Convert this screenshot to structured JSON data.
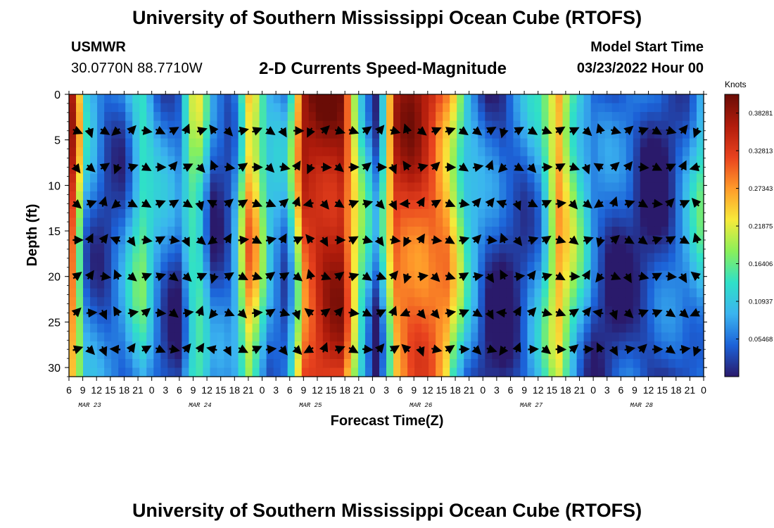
{
  "header": {
    "title": "University of Southern Mississippi Ocean Cube (RTOFS)",
    "station": "USMWR",
    "coordinates": "30.0770N  88.7710W",
    "subtitle": "2-D Currents Speed-Magnitude",
    "start_label": "Model Start Time",
    "start_value": "03/23/2022 Hour 00"
  },
  "footer": {
    "title": "University of Southern Mississippi Ocean Cube (RTOFS)"
  },
  "chart_data": {
    "type": "heatmap",
    "title": "2-D Currents Speed-Magnitude",
    "xlabel": "Forecast Time(Z)",
    "ylabel": "Depth (ft)",
    "x_ticks": [
      "6",
      "9",
      "12",
      "15",
      "18",
      "21",
      "0",
      "3",
      "6",
      "9",
      "12",
      "15",
      "18",
      "21",
      "0",
      "3",
      "6",
      "9",
      "12",
      "15",
      "18",
      "21",
      "0",
      "3",
      "6",
      "9",
      "12",
      "15",
      "18",
      "21",
      "0",
      "3",
      "6",
      "9",
      "12",
      "15",
      "18",
      "21",
      "0",
      "3",
      "6",
      "9",
      "12",
      "15",
      "18",
      "21",
      "0"
    ],
    "date_labels": [
      {
        "label": "MAR 23",
        "tick_index": 1.5
      },
      {
        "label": "MAR 24",
        "tick_index": 9.5
      },
      {
        "label": "MAR 25",
        "tick_index": 17.5
      },
      {
        "label": "MAR 26",
        "tick_index": 25.5
      },
      {
        "label": "MAR 27",
        "tick_index": 33.5
      },
      {
        "label": "MAR 28",
        "tick_index": 41.5
      }
    ],
    "y_ticks": [
      0,
      5,
      10,
      15,
      20,
      25,
      30
    ],
    "ylim": [
      0,
      31
    ],
    "depth_range": [
      0,
      31
    ],
    "colorbar": {
      "label": "Knots",
      "min": 0,
      "max": 0.41,
      "tick_labels": [
        "0.38281",
        "0.32813",
        "0.27343",
        "0.21875",
        "0.16406",
        "0.10937",
        "0.05468"
      ],
      "tick_values": [
        0.38281,
        0.32813,
        0.27343,
        0.21875,
        0.16406,
        0.10937,
        0.05468
      ]
    },
    "arrow_depths": [
      4,
      8,
      12,
      16,
      20,
      24,
      28
    ],
    "arrow_tick_spacing": 2,
    "speed_profile": [
      0.4,
      0.08,
      0.04,
      0.06,
      0.16,
      0.07,
      0.04,
      0.2,
      0.04,
      0.05,
      0.3,
      0.1,
      0.06,
      0.36,
      0.4,
      0.4,
      0.18,
      0.03,
      0.34,
      0.36,
      0.34,
      0.28,
      0.12,
      0.04,
      0.02,
      0.05,
      0.11,
      0.3,
      0.16,
      0.05,
      0.03,
      0.04,
      0.02,
      0.03,
      0.07,
      0.14
    ]
  },
  "colors": {
    "colormap": [
      "#2a1a6b",
      "#1c62d8",
      "#3bb4f0",
      "#2fe0c8",
      "#8af05a",
      "#f7ea3a",
      "#ff9a2a",
      "#e8421e",
      "#b11c0c",
      "#6a0c06"
    ]
  }
}
